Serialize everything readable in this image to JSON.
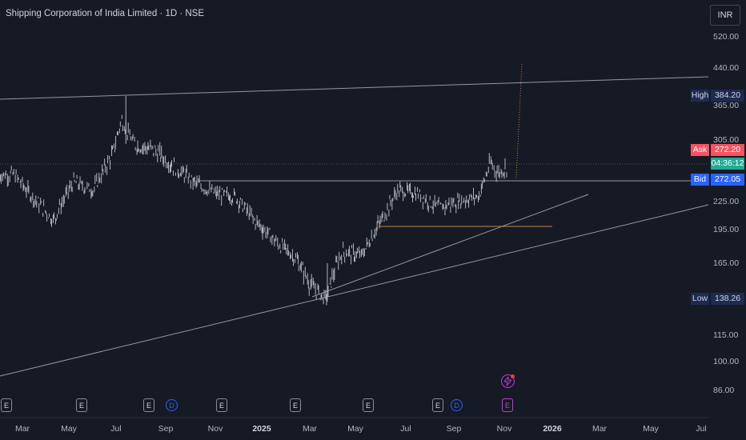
{
  "header": {
    "title": "Shipping Corporation of India Limited · 1D · NSE"
  },
  "currency": "INR",
  "price_axis": {
    "ticks": [
      "520.00",
      "440.00",
      "365.00",
      "305.00",
      "225.00",
      "195.00",
      "165.00",
      "115.00",
      "100.00",
      "86.00"
    ]
  },
  "time_axis": {
    "ticks": [
      {
        "label": "Mar",
        "bold": false
      },
      {
        "label": "May",
        "bold": false
      },
      {
        "label": "Jul",
        "bold": false
      },
      {
        "label": "Sep",
        "bold": false
      },
      {
        "label": "Nov",
        "bold": false
      },
      {
        "label": "2025",
        "bold": true
      },
      {
        "label": "Mar",
        "bold": false
      },
      {
        "label": "May",
        "bold": false
      },
      {
        "label": "Jul",
        "bold": false
      },
      {
        "label": "Sep",
        "bold": false
      },
      {
        "label": "Nov",
        "bold": false
      },
      {
        "label": "2026",
        "bold": true
      },
      {
        "label": "Mar",
        "bold": false
      },
      {
        "label": "May",
        "bold": false
      },
      {
        "label": "Jul",
        "bold": false
      }
    ]
  },
  "price_tags": {
    "high": {
      "label": "High",
      "value": "384.20"
    },
    "ask": {
      "label": "Ask",
      "value": "272.20"
    },
    "countdown": "04:36:12",
    "bid": {
      "label": "Bid",
      "value": "272.05"
    },
    "low": {
      "label": "Low",
      "value": "138.26"
    }
  },
  "events": {
    "earnings_letter": "E",
    "dividend_letter": "D",
    "bolt_icon": "lightning-icon"
  },
  "colors": {
    "background": "#161a25",
    "candles": "#b2b5be",
    "ask": "#f7525f",
    "bid": "#2962ff",
    "countdown": "#22ab94",
    "high_low_tag": "#1e2a52",
    "event_pink": "#c33ad8",
    "support_line": "#c8823a"
  },
  "chart_data": {
    "type": "candlestick",
    "title": "Shipping Corporation of India Limited · 1D · NSE",
    "currency": "INR",
    "x_range": [
      "2024-02",
      "2026-07"
    ],
    "y_ticks": [
      86,
      100,
      115,
      165,
      195,
      225,
      305,
      365,
      440,
      520
    ],
    "close_series": {
      "dates": [
        "2024-02-20",
        "2024-03-15",
        "2024-04-10",
        "2024-05-05",
        "2024-05-30",
        "2024-06-25",
        "2024-07-05",
        "2024-07-20",
        "2024-08-15",
        "2024-09-10",
        "2024-10-05",
        "2024-11-01",
        "2024-11-25",
        "2024-12-20",
        "2025-01-15",
        "2025-02-10",
        "2025-03-01",
        "2025-03-20",
        "2025-04-10",
        "2025-05-05",
        "2025-05-30",
        "2025-06-20",
        "2025-07-15",
        "2025-08-10",
        "2025-09-05",
        "2025-09-30",
        "2025-10-15",
        "2025-10-25",
        "2025-11-05"
      ],
      "close": [
        260,
        230,
        205,
        250,
        240,
        290,
        340,
        300,
        292,
        270,
        250,
        235,
        232,
        205,
        185,
        170,
        150,
        140,
        175,
        172,
        205,
        240,
        235,
        218,
        226,
        232,
        275,
        262,
        270
      ]
    },
    "high": 384.2,
    "low": 138.26,
    "ask": 272.2,
    "bid": 272.05
  }
}
